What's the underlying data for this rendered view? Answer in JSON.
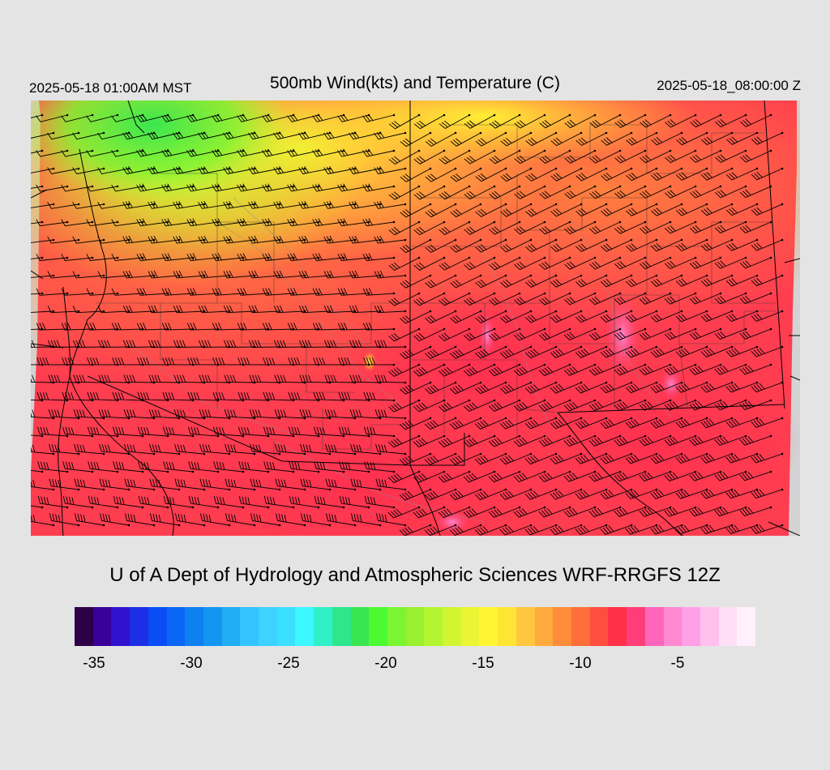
{
  "header": {
    "local_time": "2025-05-18 01:00AM MST",
    "title": "500mb Wind(kts) and Temperature (C)",
    "utc_time": "2025-05-18_08:00:00 Z"
  },
  "footer": {
    "credit": "U of A Dept of Hydrology and Atmospheric Sciences WRF-RRGFS 12Z"
  },
  "map": {
    "field": "temperature",
    "field_units": "C",
    "overlay": "wind-barbs",
    "overlay_units": "kts",
    "background_color": "#d3d3d3",
    "temperature_extremes": {
      "coldest_c": -20,
      "coldest_location": "northwest corner",
      "warmest_c": -5,
      "warmest_location": "southeast"
    }
  },
  "colorbar": {
    "colors": [
      "#2e0045",
      "#3a0099",
      "#3012cf",
      "#1c2ee6",
      "#0a4df5",
      "#0a66f5",
      "#0f80f0",
      "#1496f0",
      "#21aef5",
      "#33c4ff",
      "#3dd2ff",
      "#3be0ff",
      "#3bf7ff",
      "#30f0c8",
      "#2ee68c",
      "#3ae650",
      "#4dfa32",
      "#7af532",
      "#99f030",
      "#b4f532",
      "#d2f532",
      "#ecf533",
      "#fff533",
      "#ffe533",
      "#ffc640",
      "#ffaa3d",
      "#ff8c3a",
      "#ff6e38",
      "#ff4d40",
      "#ff3048",
      "#ff3d78",
      "#ff66bb",
      "#ff88d2",
      "#ffa0e8",
      "#ffc0ee",
      "#ffdff5",
      "#fff0fb"
    ],
    "tick_labels": [
      "-35",
      "-30",
      "-25",
      "-20",
      "-15",
      "-10",
      "-5"
    ],
    "tick_values": [
      -35,
      -30,
      -25,
      -20,
      -15,
      -10,
      -5
    ],
    "range_min": -36,
    "range_max": -1
  }
}
